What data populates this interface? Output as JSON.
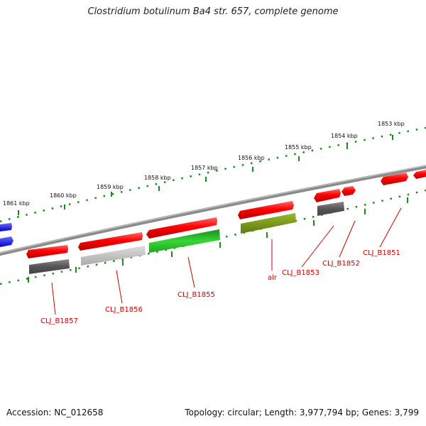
{
  "title": "Clostridium botulinum Ba4 str. 657, complete genome",
  "scale": {
    "labels": [
      "1853 kbp",
      "1854 kbp",
      "1855 kbp",
      "1856 kbp",
      "1857 kbp",
      "1858 kbp",
      "1859 kbp",
      "1860 kbp",
      "1861 kbp"
    ]
  },
  "genes": {
    "labels": [
      "CLJ_B1851",
      "CLJ_B1852",
      "CLJ_B1853",
      "alr",
      "CLJ_B1855",
      "CLJ_B1856",
      "CLJ_B1857"
    ]
  },
  "colors": {
    "forward_gene": "#ff0000",
    "rna_blue": "#0000ff",
    "cds_gray": "#666666",
    "cds_light_gray": "#c8c8c8",
    "cds_green": "#33cc33",
    "cds_olive": "#7a9a1a",
    "tick_green": "#1a8a1a",
    "backbone": "#8a8a8a",
    "label_red": "#cc0000"
  },
  "footer": {
    "accession": "Accession: NC_012658",
    "topology": "Topology: circular; Length: 3,977,794 bp; Genes: 3,799"
  }
}
